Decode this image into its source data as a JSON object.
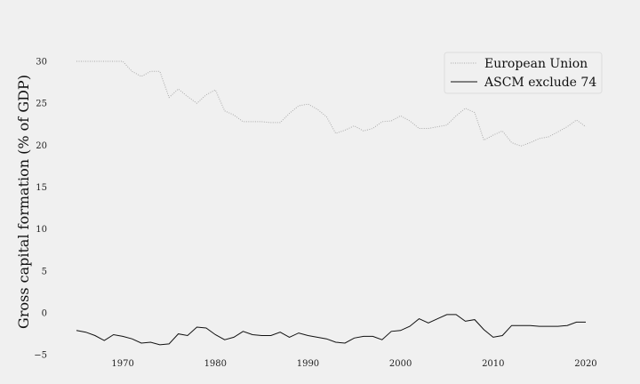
{
  "chart_data": {
    "type": "line",
    "title": "",
    "xlabel": "",
    "ylabel": "Gross capital formation (% of GDP)",
    "xlim": [
      1962.5,
      2022.5
    ],
    "ylim": [
      -5.3,
      33.5
    ],
    "grid": false,
    "legend_position": "top-right",
    "x_ticks": [
      1970,
      1980,
      1990,
      2000,
      2010,
      2020
    ],
    "y_ticks": [
      -5,
      0,
      5,
      10,
      15,
      20,
      25,
      30
    ],
    "x": [
      1965,
      1966,
      1967,
      1968,
      1969,
      1970,
      1971,
      1972,
      1973,
      1974,
      1975,
      1976,
      1977,
      1978,
      1979,
      1980,
      1981,
      1982,
      1983,
      1984,
      1985,
      1986,
      1987,
      1988,
      1989,
      1990,
      1991,
      1992,
      1993,
      1994,
      1995,
      1996,
      1997,
      1998,
      1999,
      2000,
      2001,
      2002,
      2003,
      2004,
      2005,
      2006,
      2007,
      2008,
      2009,
      2010,
      2011,
      2012,
      2013,
      2014,
      2015,
      2016,
      2017,
      2018,
      2019,
      2020
    ],
    "series": [
      {
        "name": "European Union",
        "color": "#aaaaaa",
        "dash": "dotted",
        "values": [
          30.0,
          30.0,
          30.0,
          30.0,
          30.0,
          30.0,
          28.8,
          28.2,
          28.8,
          28.8,
          25.7,
          26.7,
          25.8,
          25.0,
          26.0,
          26.6,
          24.1,
          23.6,
          22.8,
          22.8,
          22.8,
          22.7,
          22.7,
          23.8,
          24.7,
          24.9,
          24.3,
          23.4,
          21.4,
          21.8,
          22.3,
          21.7,
          22.0,
          22.8,
          22.9,
          23.5,
          22.9,
          22.0,
          22.0,
          22.2,
          22.4,
          23.5,
          24.4,
          23.9,
          20.6,
          21.2,
          21.7,
          20.3,
          19.9,
          20.3,
          20.8,
          21.0,
          21.6,
          22.2,
          23.0,
          22.2
        ]
      },
      {
        "name": "ASCM exclude 74",
        "color": "#111111",
        "dash": "solid",
        "values": [
          -2.1,
          -2.3,
          -2.7,
          -3.3,
          -2.6,
          -2.8,
          -3.1,
          -3.6,
          -3.5,
          -3.8,
          -3.7,
          -2.5,
          -2.7,
          -1.7,
          -1.8,
          -2.6,
          -3.2,
          -2.9,
          -2.2,
          -2.6,
          -2.7,
          -2.7,
          -2.3,
          -2.9,
          -2.4,
          -2.7,
          -2.9,
          -3.1,
          -3.5,
          -3.6,
          -3.0,
          -2.8,
          -2.8,
          -3.2,
          -2.2,
          -2.1,
          -1.6,
          -0.7,
          -1.2,
          -0.7,
          -0.2,
          -0.2,
          -1.0,
          -0.8,
          -2.0,
          -2.9,
          -2.7,
          -1.5,
          -1.5,
          -1.5,
          -1.6,
          -1.6,
          -1.6,
          -1.5,
          -1.1,
          -1.1
        ]
      }
    ]
  }
}
